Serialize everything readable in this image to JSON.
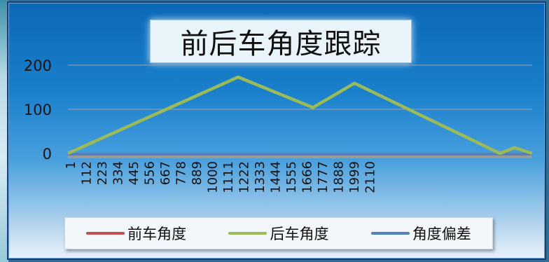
{
  "chart_data": {
    "type": "line",
    "title": "前后车角度跟踪",
    "ylim": [
      0,
      200
    ],
    "yticks": [
      "0",
      "100",
      "200"
    ],
    "xlim": [
      1,
      2235
    ],
    "xticks": [
      "1",
      "112",
      "223",
      "334",
      "445",
      "556",
      "667",
      "778",
      "889",
      "1000",
      "1111",
      "1222",
      "1333",
      "1444",
      "1555",
      "1666",
      "1777",
      "1888",
      "1999",
      "2110"
    ],
    "grid": true,
    "legend_position": "bottom",
    "series": [
      {
        "name": "前车角度",
        "color": "#c0504d",
        "x": [
          1,
          820,
          1180,
          1380,
          2080,
          2150,
          2235
        ],
        "y": [
          0,
          173,
          104,
          159,
          0,
          13,
          0
        ]
      },
      {
        "name": "后车角度",
        "color": "#9bbb59",
        "x": [
          1,
          820,
          1180,
          1380,
          2080,
          2150,
          2235
        ],
        "y": [
          0,
          173,
          104,
          159,
          0,
          13,
          0
        ]
      },
      {
        "name": "角度偏差",
        "color": "#4f81bd",
        "x": [
          1,
          2235
        ],
        "y": [
          0,
          0
        ]
      }
    ]
  }
}
